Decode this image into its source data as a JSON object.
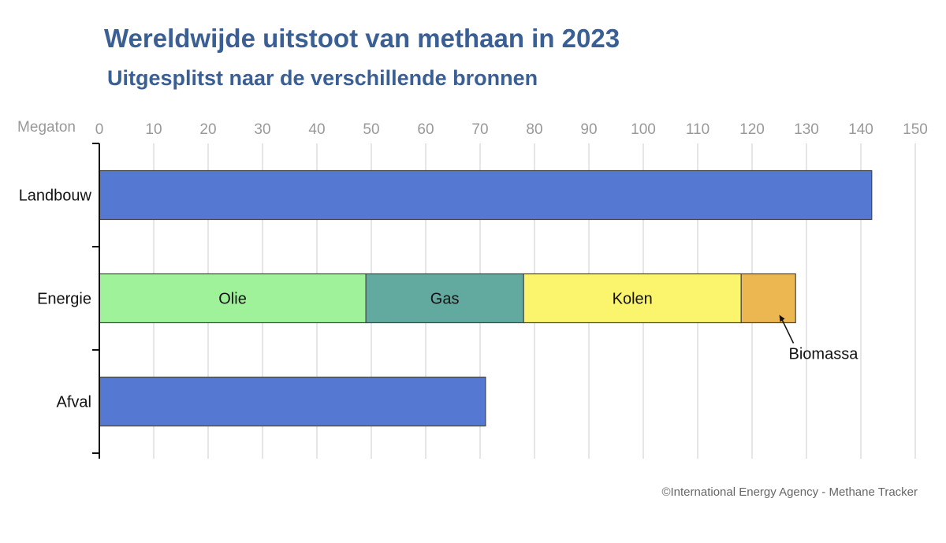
{
  "header": {
    "title": "Wereldwijde uitstoot van methaan in 2023",
    "subtitle": "Uitgesplitst naar de verschillende bronnen"
  },
  "footer": {
    "source": "©International Energy Agency - Methane Tracker"
  },
  "chart_data": {
    "type": "bar",
    "orientation": "horizontal",
    "stacked": true,
    "title": "Wereldwijde uitstoot van methaan in 2023",
    "subtitle": "Uitgesplitst naar de verschillende bronnen",
    "xlabel": "Megaton",
    "ylabel": "",
    "xlim": [
      0,
      150
    ],
    "xticks": [
      0,
      10,
      20,
      30,
      40,
      50,
      60,
      70,
      80,
      90,
      100,
      110,
      120,
      130,
      140,
      150
    ],
    "axis_position": "top",
    "grid": true,
    "categories": [
      "Landbouw",
      "Energie",
      "Afval"
    ],
    "bars": [
      {
        "category": "Landbouw",
        "segments": [
          {
            "label": "",
            "value": 142,
            "color": "#5579d2"
          }
        ]
      },
      {
        "category": "Energie",
        "segments": [
          {
            "label": "Olie",
            "value": 49,
            "color": "#a0f29a"
          },
          {
            "label": "Gas",
            "value": 29,
            "color": "#62aaa0"
          },
          {
            "label": "Kolen",
            "value": 40,
            "color": "#fbf46d"
          },
          {
            "label": "",
            "value": 10,
            "color": "#ecb651"
          }
        ]
      },
      {
        "category": "Afval",
        "segments": [
          {
            "label": "",
            "value": 71,
            "color": "#5579d2"
          }
        ]
      }
    ],
    "annotations": [
      {
        "text": "Biomassa",
        "category": "Energie",
        "segment_index": 3
      }
    ],
    "colors": {
      "axis": "#111111",
      "grid": "#dddddd",
      "bar_border": "#444444"
    }
  }
}
